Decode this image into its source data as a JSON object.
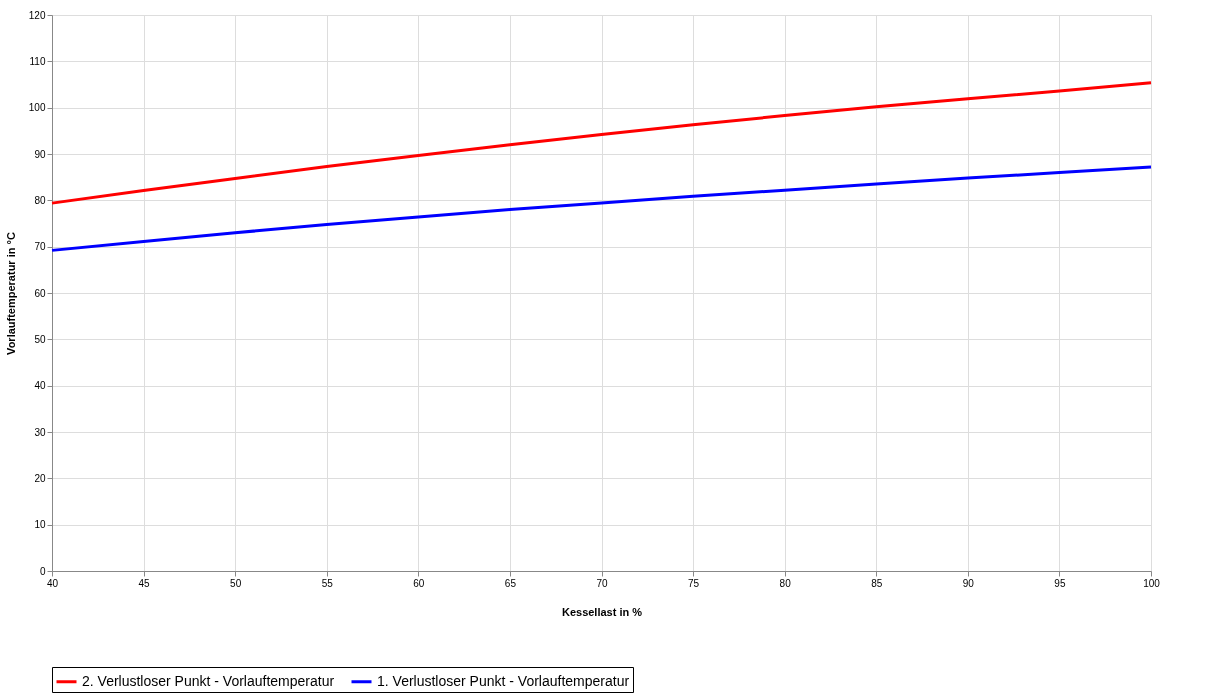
{
  "chart_data": {
    "type": "line",
    "xlabel": "Kessellast in %",
    "ylabel": "Vorlauftemperatur in °C",
    "x": [
      40,
      45,
      50,
      55,
      60,
      65,
      70,
      75,
      80,
      85,
      90,
      95,
      100
    ],
    "series": [
      {
        "name": "2. Verlustloser Punkt - Vorlauftemperatur",
        "color": "#ff0000",
        "values": [
          79.4,
          82.1,
          84.7,
          87.3,
          89.7,
          92.0,
          94.2,
          96.3,
          98.3,
          100.2,
          101.9,
          103.6,
          105.4
        ]
      },
      {
        "name": "1. Verlustloser Punkt - Vorlauftemperatur",
        "color": "#0000ff",
        "values": [
          69.2,
          71.1,
          73.0,
          74.8,
          76.4,
          78.0,
          79.4,
          80.9,
          82.2,
          83.5,
          84.8,
          86.0,
          87.2
        ]
      }
    ],
    "xlim": [
      40,
      100
    ],
    "xticks": [
      40,
      45,
      50,
      55,
      60,
      65,
      70,
      75,
      80,
      85,
      90,
      95,
      100
    ],
    "ylim": [
      0,
      120
    ],
    "yticks": [
      0,
      10,
      20,
      30,
      40,
      50,
      60,
      70,
      80,
      90,
      100,
      110,
      120
    ],
    "grid": true,
    "legend": "bottom",
    "marker": "none",
    "line_style": "solid"
  }
}
